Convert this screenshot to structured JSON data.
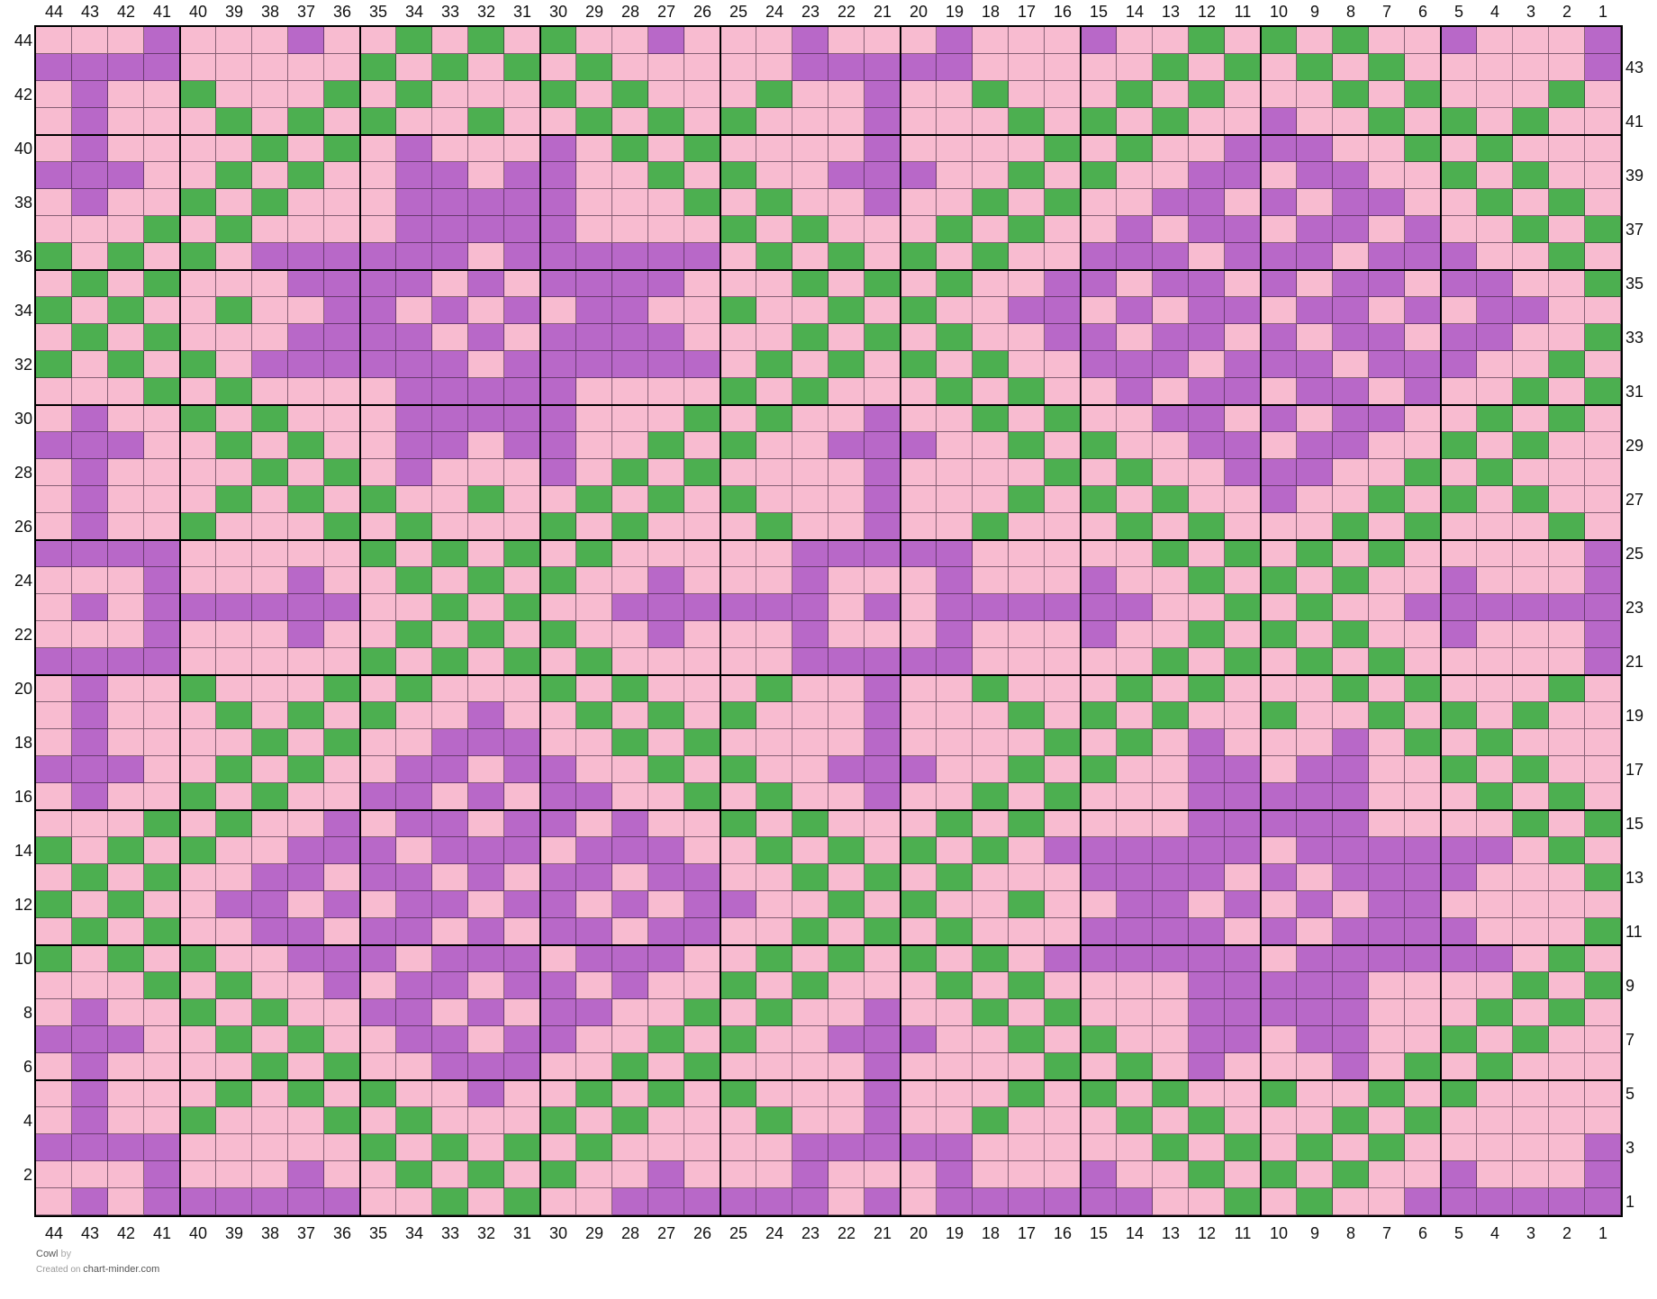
{
  "chart": {
    "columns": [
      44,
      43,
      42,
      41,
      40,
      39,
      38,
      37,
      36,
      35,
      34,
      33,
      32,
      31,
      30,
      29,
      28,
      27,
      26,
      25,
      24,
      23,
      22,
      21,
      20,
      19,
      18,
      17,
      16,
      15,
      14,
      13,
      12,
      11,
      10,
      9,
      8,
      7,
      6,
      5,
      4,
      3,
      2,
      1
    ],
    "rows_top_to_bottom": [
      44,
      43,
      42,
      41,
      40,
      39,
      38,
      37,
      36,
      35,
      34,
      33,
      32,
      31,
      30,
      29,
      28,
      27,
      26,
      25,
      24,
      23,
      22,
      21,
      20,
      19,
      18,
      17,
      16,
      15,
      14,
      13,
      12,
      11,
      10,
      9,
      8,
      7,
      6,
      5,
      4,
      3,
      2,
      1
    ],
    "left_row_labels": [
      44,
      42,
      40,
      38,
      36,
      34,
      32,
      30,
      28,
      26,
      24,
      22,
      20,
      18,
      16,
      14,
      12,
      10,
      8,
      6,
      4,
      2
    ],
    "right_row_labels": [
      43,
      41,
      39,
      37,
      35,
      33,
      31,
      29,
      27,
      25,
      23,
      21,
      19,
      17,
      15,
      13,
      11,
      9,
      7,
      5,
      3,
      1
    ],
    "colors": {
      "P": "#F8BBD0",
      "M": "#B868C8",
      "G": "#4CAF50"
    },
    "color_names": {
      "P": "pink",
      "M": "purple",
      "G": "green"
    },
    "grid_line_color": "#000000",
    "bold_line_every": 5,
    "cells": [
      "PPPMPPPMPPGPGPGPPMPPPMPPPMPPPMPPGPGPGPPMPPPM",
      "MMMMPPPPPGPGPGPGPPPPPMMMMMPPPPPGPGPGPGPPPPPM",
      "PMPPGPPPGPGPPPGPGPPPGPPMPPGPPPGPGPPPGPGPPPGP",
      "PMPPPGPGPGPPGPPGPGPGPPPMPPPGPGPGPPMPPGPGPGPP",
      "PMPPPPGPGPMPPPMPGPGPPPPMPPPPGPGPPMMMPPGPGPPP",
      "MMMPPGPGPPMMPMMPPGPGPPMMMPPGPGPPMMPMMPPGPGPP",
      "PMPPGPGPPPMMMMMPPPGPGPPMPPGPGPPMMPMPMMPPGPGP",
      "PPPGPGPPPPMMMMMPPPPGPGPPPGPGPPMPMMPMMPMPPGPG",
      "GPGPGPMMMMMMPMMMMMMPGPGPGPGPPMMMPMMMPMMMPPGP",
      "PGPGPPPMMMMPMPMMMMPPPGPGPGPPMMPMMPMPMMPMMPPG",
      "GPGPPGPPMMPMPMPMMPPGPPGPGPPMMPMPMMPMMPMPMMPP",
      "PGPGPPPMMMMPMPMMMMPPPGPGPGPPMMPMMPMPMMPMMPPG",
      "GPGPGPMMMMMMPMMMMMMPGPGPGPGPPMMMPMMMPMMMPPGP",
      "PPPGPGPPPPMMMMMPPPPGPGPPPGPGPPMPMMPMMPMPPGPG",
      "PMPPGPGPPPMMMMMPPPGPGPPMPPGPGPPMMPMPMMPPGPGP",
      "MMMPPGPGPPMMPMMPPGPGPPMMMPPGPGPPMMPMMPPGPGPP",
      "PMPPPPGPGPMPPPMPGPGPPPPMPPPPGPGPPMMMPPGPGPPP",
      "PMPPPGPGPGPPGPPGPGPGPPPMPPPGPGPGPPMPPGPGPGPP",
      "PMPPGPPPGPGPPPGPGPPPGPPMPPGPPPGPGPPPGPGPPPGP",
      "MMMMPPPPPGPGPGPGPPPPPMMMMMPPPPPGPGPGPGPPPPPM",
      "PPPMPPPMPPGPGPGPPMPPPMPPPMPPPMPPGPGPGPPMPPPM",
      "PMPMMMMMMPPGPGPPMMMMMMPMPMMMMMMPPGPGPPMMMMMM",
      "PPPMPPPMPPGPGPGPPMPPPMPPPMPPPMPPGPGPGPPMPPPM",
      "MMMMPPPPPGPGPGPGPPPPPMMMMMPPPPPGPGPGPGPPPPPM",
      "PMPPGPPPGPGPPPGPGPPPGPPMPPGPPPGPGPPPGPGPPPGP",
      "PMPPPGPGPGPPMPPGPGPGPPPMPPPGPGPGPPGPPGPGPGPP",
      "PMPPPPGPGPPMMMPPGPGPPPPMPPPPGPGPMPPPMPGPGPPP",
      "MMMPPGPGPPMMPMMPPGPGPPMMMPPGPGPPMMPMMPPGPGPP",
      "PMPPGPGPPMMPMPMMPPGPGPPMPPGPGPPPMMMMMPPPGPGP",
      "PPPGPGPPMPMMPMMPMPPGPGPPPGPGPPPPMMMMMPPPPGPG",
      "GPGPGPPMMMPMMMPMMMPPGPGPGPGPMMMMMMPMMMMMMPGP",
      "PGPGPPMMPMMPMPMMPMMPPGPGPGPPPMMMMPMPMMMMPPPG",
      "GPGPPMMPMPMMPMMPMPMMPPGPGPPGPPMMPMPMPMMPPPPP",
      "PGPGPPMMPMMPMPMMPMMPPGPGPGPPPMMMMPMPMMMMPPPG",
      "GPGPGPPMMMPMMMPMMMPPGPGPGPGPMMMMMMPMMMMMMPGP",
      "PPPGPGPPMPMMPMMPMPPGPGPPPGPGPPPPMMMMMPPPPGPG",
      "PMPPGPGPPMMPMPMMPPGPGPPMPPGPGPPPMMMMMPPPGPGP",
      "MMMPPGPGPPMMPMMPPGPGPPMMMPPGPGPPMMPMMPPGPGPP",
      "PMPPPPGPGPPMMMPPGPGPPPPMPPPPGPGPMPPPMPGPGPPP",
      "PMPPPGPGPGPPMPPGPGPGPPPMPPPGPGPGPPGPPGPGPPPP",
      "PMPPGPPPGPGPPPGPGPPPGPPMPPGPPPGPGPPPGPGPPPPP",
      "MMMMPPPPPGPGPGPGPPPPPMMMMMPPPPPGPGPGPGPPPPPM",
      "PPPMPPPMPPGPGPGPPMPPPMPPPMPPPMPPGPGPGPPMPPPM",
      "PMPMMMMMMPPGPGPPMMMMMMPMPMMMMMMPPGPGPPMMMMMM"
    ]
  },
  "footer": {
    "title": "Cowl",
    "by": "by",
    "created_on": "Created on",
    "site": "chart-minder.com"
  }
}
